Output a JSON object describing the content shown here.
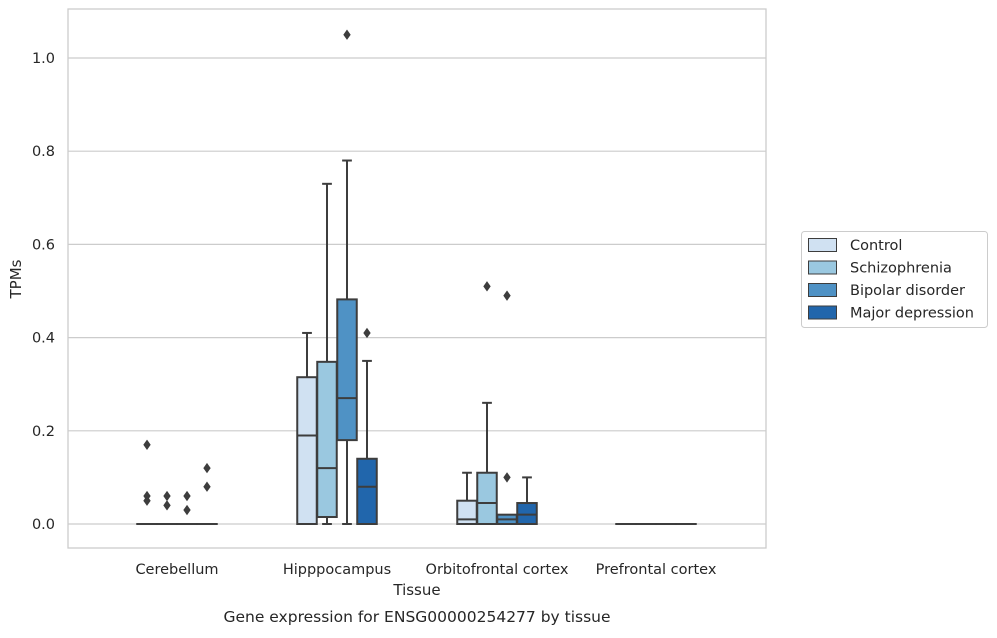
{
  "chart_data": {
    "type": "box",
    "title": "",
    "caption": "Gene expression for ENSG00000254277 by tissue",
    "xlabel": "Tissue",
    "ylabel": "TPMs",
    "ylim": [
      -0.05,
      1.1
    ],
    "yticks": [
      0.0,
      0.2,
      0.4,
      0.6,
      0.8,
      1.0
    ],
    "ytick_labels": [
      "0.0",
      "0.2",
      "0.4",
      "0.6",
      "0.8",
      "1.0"
    ],
    "grid": "horizontal",
    "legend_position": "outside-right",
    "categories": [
      "Cerebellum",
      "Hipppocampus",
      "Orbitofrontal cortex",
      "Prefrontal cortex"
    ],
    "series": [
      {
        "name": "Control",
        "color": "#d0e1f2",
        "boxes": [
          {
            "q1": 0,
            "median": 0,
            "q3": 0,
            "whisker_low": 0,
            "whisker_high": 0,
            "outliers": [
              0.17,
              0.06,
              0.05
            ]
          },
          {
            "q1": 0,
            "median": 0.19,
            "q3": 0.315,
            "whisker_low": 0,
            "whisker_high": 0.41,
            "outliers": []
          },
          {
            "q1": 0,
            "median": 0.01,
            "q3": 0.05,
            "whisker_low": 0,
            "whisker_high": 0.11,
            "outliers": []
          },
          {
            "q1": 0,
            "median": 0,
            "q3": 0,
            "whisker_low": 0,
            "whisker_high": 0,
            "outliers": []
          }
        ]
      },
      {
        "name": "Schizophrenia",
        "color": "#9ac8e0",
        "boxes": [
          {
            "q1": 0,
            "median": 0,
            "q3": 0,
            "whisker_low": 0,
            "whisker_high": 0,
            "outliers": [
              0.06,
              0.04
            ]
          },
          {
            "q1": 0.015,
            "median": 0.12,
            "q3": 0.348,
            "whisker_low": 0,
            "whisker_high": 0.73,
            "outliers": []
          },
          {
            "q1": 0,
            "median": 0.045,
            "q3": 0.11,
            "whisker_low": 0,
            "whisker_high": 0.26,
            "outliers": [
              0.51
            ]
          },
          {
            "q1": 0,
            "median": 0,
            "q3": 0,
            "whisker_low": 0,
            "whisker_high": 0,
            "outliers": []
          }
        ]
      },
      {
        "name": "Bipolar disorder",
        "color": "#4f92c5",
        "boxes": [
          {
            "q1": 0,
            "median": 0,
            "q3": 0,
            "whisker_low": 0,
            "whisker_high": 0,
            "outliers": [
              0.06,
              0.03
            ]
          },
          {
            "q1": 0.18,
            "median": 0.27,
            "q3": 0.482,
            "whisker_low": 0,
            "whisker_high": 0.78,
            "outliers": [
              1.05
            ]
          },
          {
            "q1": 0,
            "median": 0.01,
            "q3": 0.02,
            "whisker_low": 0,
            "whisker_high": 0.02,
            "outliers": [
              0.49,
              0.1
            ]
          },
          {
            "q1": 0,
            "median": 0,
            "q3": 0,
            "whisker_low": 0,
            "whisker_high": 0,
            "outliers": []
          }
        ]
      },
      {
        "name": "Major depression",
        "color": "#2166ac",
        "boxes": [
          {
            "q1": 0,
            "median": 0,
            "q3": 0,
            "whisker_low": 0,
            "whisker_high": 0,
            "outliers": [
              0.12,
              0.08
            ]
          },
          {
            "q1": 0,
            "median": 0.08,
            "q3": 0.14,
            "whisker_low": 0,
            "whisker_high": 0.35,
            "outliers": [
              0.41
            ]
          },
          {
            "q1": 0,
            "median": 0.02,
            "q3": 0.045,
            "whisker_low": 0,
            "whisker_high": 0.1,
            "outliers": []
          },
          {
            "q1": 0,
            "median": 0,
            "q3": 0,
            "whisker_low": 0,
            "whisker_high": 0,
            "outliers": []
          }
        ]
      }
    ]
  }
}
